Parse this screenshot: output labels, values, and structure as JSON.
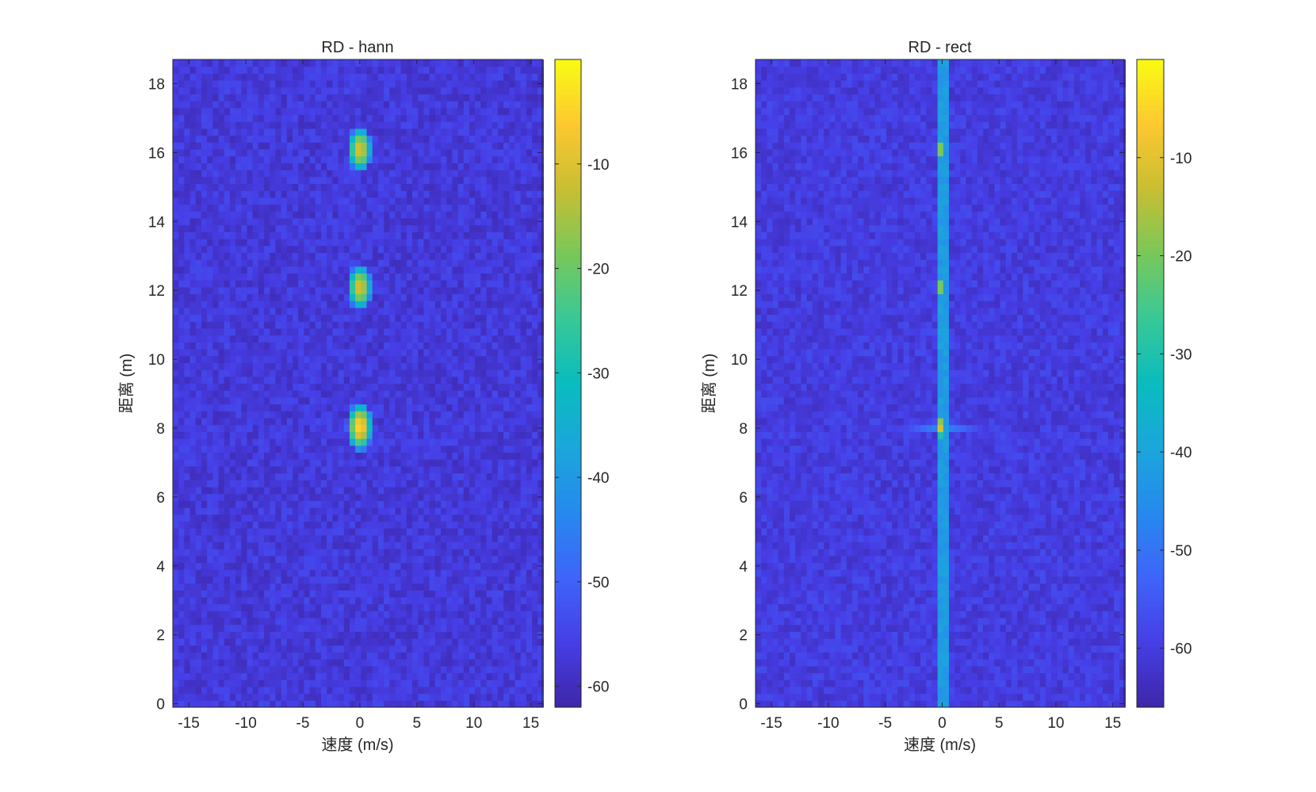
{
  "chart_data": [
    {
      "type": "heatmap",
      "title": "RD - hann",
      "xlabel": "速度 (m/s)",
      "ylabel": "距离 (m)",
      "xlim": [
        -16.4,
        16.0
      ],
      "ylim": [
        -0.1,
        18.7
      ],
      "xticks": [
        -15,
        -10,
        -5,
        0,
        5,
        10,
        15
      ],
      "yticks": [
        0,
        2,
        4,
        6,
        8,
        10,
        12,
        14,
        16,
        18
      ],
      "colormap": "parula",
      "colorbar": {
        "range_db": [
          -62,
          0
        ],
        "ticks": [
          -10,
          -20,
          -30,
          -40,
          -50,
          -60
        ]
      },
      "noise_floor_db": -57,
      "window": "hann",
      "targets": [
        {
          "velocity_m_s": 0,
          "range_m": 16.1,
          "peak_db": -10
        },
        {
          "velocity_m_s": 0,
          "range_m": 12.1,
          "peak_db": -10
        },
        {
          "velocity_m_s": 0,
          "range_m": 8.05,
          "peak_db": -4
        }
      ],
      "grid": false,
      "legend": "none"
    },
    {
      "type": "heatmap",
      "title": "RD - rect",
      "xlabel": "速度 (m/s)",
      "ylabel": "距离 (m)",
      "xlim": [
        -16.4,
        16.0
      ],
      "ylim": [
        -0.1,
        18.7
      ],
      "xticks": [
        -15,
        -10,
        -5,
        0,
        5,
        10,
        15
      ],
      "yticks": [
        0,
        2,
        4,
        6,
        8,
        10,
        12,
        14,
        16,
        18
      ],
      "colormap": "parula",
      "colorbar": {
        "range_db": [
          -66,
          0
        ],
        "ticks": [
          -10,
          -20,
          -30,
          -40,
          -50,
          -60
        ]
      },
      "noise_floor_db": -60,
      "window": "rect",
      "zero_velocity_line_db": -42,
      "targets": [
        {
          "velocity_m_s": 0,
          "range_m": 16.1,
          "peak_db": -10
        },
        {
          "velocity_m_s": 0,
          "range_m": 12.1,
          "peak_db": -10
        },
        {
          "velocity_m_s": 0,
          "range_m": 8.05,
          "peak_db": -4
        }
      ],
      "grid": false,
      "legend": "none"
    }
  ]
}
